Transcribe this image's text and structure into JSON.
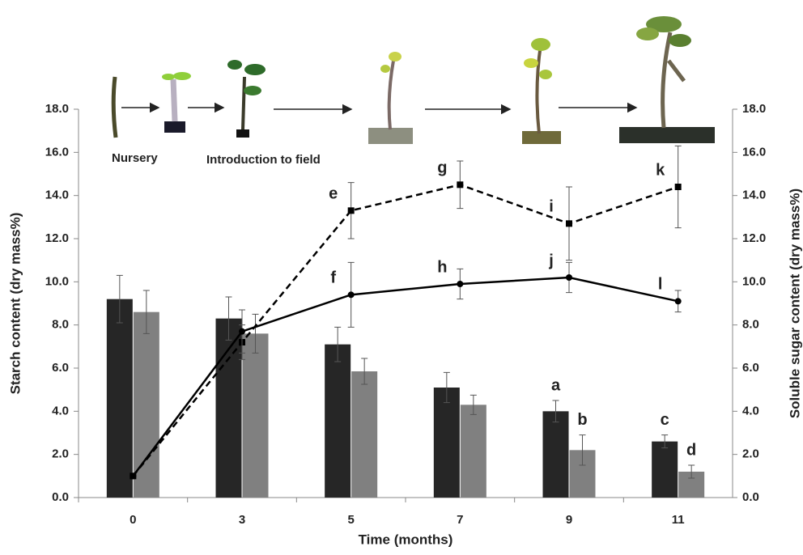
{
  "chart_data": {
    "type": "bar",
    "x_label": "Time (months)",
    "y_label": "Starch content (dry mass%)",
    "y2_label": "Soluble sugar content (dry mass%)",
    "stage_labels": [
      "Nursery",
      "Introduction to field"
    ],
    "categories": [
      "0",
      "3",
      "5",
      "7",
      "9",
      "11"
    ],
    "ylim": [
      0,
      18
    ],
    "yticks": [
      {
        "value": 0,
        "label": "0.0"
      },
      {
        "value": 2,
        "label": "2.0"
      },
      {
        "value": 4,
        "label": "4.0"
      },
      {
        "value": 6,
        "label": "6.0"
      },
      {
        "value": 8,
        "label": "8.0"
      },
      {
        "value": 10,
        "label": "10.0"
      },
      {
        "value": 12,
        "label": "12.0"
      },
      {
        "value": 14,
        "label": "14.0"
      },
      {
        "value": 16,
        "label": "16.0"
      },
      {
        "value": 18,
        "label": "18.0"
      }
    ],
    "y2lim": [
      0,
      18
    ],
    "y2ticks": [
      {
        "value": 0,
        "label": "0.0"
      },
      {
        "value": 2,
        "label": "2.0"
      },
      {
        "value": 4,
        "label": "4.0"
      },
      {
        "value": 6,
        "label": "6.0"
      },
      {
        "value": 8,
        "label": "8.0"
      },
      {
        "value": 10,
        "label": "10.0"
      },
      {
        "value": 12,
        "label": "12.0"
      },
      {
        "value": 14,
        "label": "14.0"
      },
      {
        "value": 16,
        "label": "16.0"
      },
      {
        "value": 18,
        "label": "18.0"
      }
    ],
    "series": [
      {
        "type": "bar",
        "color": "#262626",
        "values": [
          9.2,
          8.3,
          7.1,
          5.1,
          4.0,
          2.6
        ],
        "errors": [
          1.1,
          1.0,
          0.8,
          0.7,
          0.5,
          0.3
        ],
        "letters": [
          null,
          null,
          null,
          null,
          "a",
          "c"
        ]
      },
      {
        "type": "bar",
        "color": "#808080",
        "values": [
          8.6,
          7.6,
          5.85,
          4.3,
          2.2,
          1.2
        ],
        "errors": [
          1.0,
          0.9,
          0.6,
          0.45,
          0.7,
          0.3
        ],
        "letters": [
          null,
          null,
          null,
          null,
          "b",
          "d"
        ]
      },
      {
        "type": "line",
        "axis": "y2",
        "dashed": true,
        "marker": "square",
        "color": "#000000",
        "values": [
          1.0,
          7.2,
          13.3,
          14.5,
          12.7,
          14.4
        ],
        "errors": [
          null,
          0.8,
          1.3,
          1.1,
          1.7,
          1.9
        ],
        "letters": [
          null,
          null,
          "e",
          "g",
          "i",
          "k"
        ]
      },
      {
        "type": "line",
        "axis": "y2",
        "dashed": false,
        "marker": "circle",
        "color": "#000000",
        "values": [
          1.0,
          7.7,
          9.4,
          9.9,
          10.2,
          9.1
        ],
        "errors": [
          null,
          1.0,
          1.5,
          0.7,
          0.7,
          0.5
        ],
        "letters": [
          null,
          null,
          "f",
          "h",
          "j",
          "l"
        ]
      }
    ]
  }
}
